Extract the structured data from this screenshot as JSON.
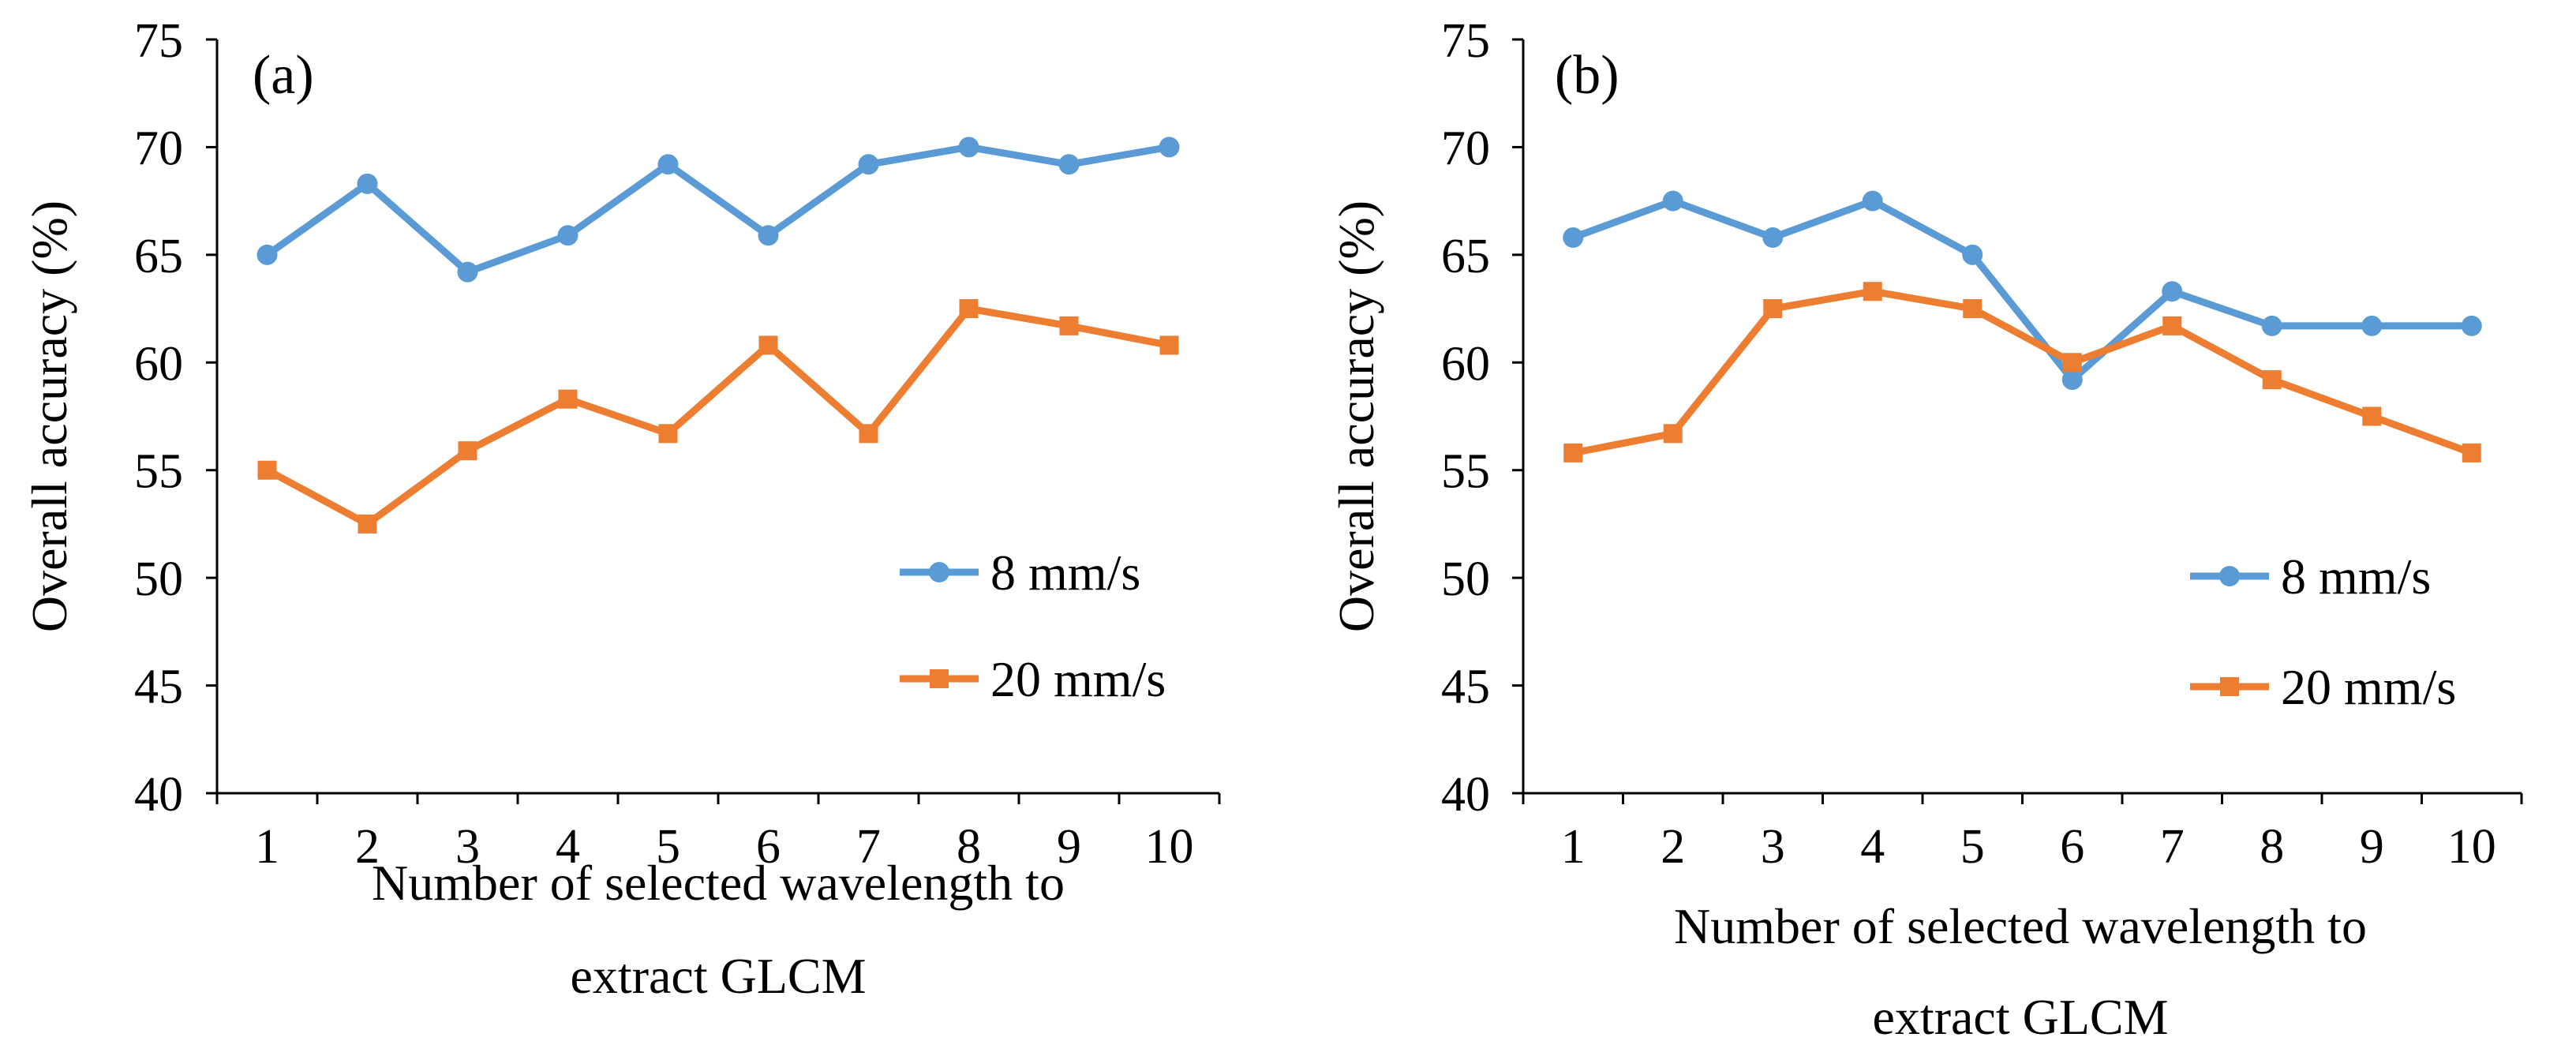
{
  "chart_data": [
    {
      "type": "line",
      "panel_label": "(a)",
      "title": "",
      "xlabel": [
        "Number of  selected wavelength to",
        "extract GLCM"
      ],
      "ylabel": "Overall accuracy (%)",
      "ylim": [
        40,
        75
      ],
      "yticks": [
        40,
        45,
        50,
        55,
        60,
        65,
        70,
        75
      ],
      "categories": [
        "1",
        "2",
        "3",
        "4",
        "5",
        "6",
        "7",
        "8",
        "9",
        "10"
      ],
      "grid": false,
      "legend_position": "bottom-right",
      "series": [
        {
          "name": "8 mm/s",
          "marker": "circle",
          "color": "#5B9BD5",
          "values": [
            65.0,
            68.3,
            64.2,
            65.9,
            69.2,
            65.9,
            69.2,
            70.0,
            69.2,
            70.0
          ]
        },
        {
          "name": "20 mm/s",
          "marker": "square",
          "color": "#ED7D31",
          "values": [
            55.0,
            52.5,
            55.9,
            58.3,
            56.7,
            60.8,
            56.7,
            62.5,
            61.7,
            60.8
          ]
        }
      ]
    },
    {
      "type": "line",
      "panel_label": "(b)",
      "title": "",
      "xlabel": [
        "Number of  selected wavelength to",
        "extract GLCM"
      ],
      "ylabel": "Overall accuracy (%)",
      "ylim": [
        40,
        75
      ],
      "yticks": [
        40,
        45,
        50,
        55,
        60,
        65,
        70,
        75
      ],
      "categories": [
        "1",
        "2",
        "3",
        "4",
        "5",
        "6",
        "7",
        "8",
        "9",
        "10"
      ],
      "grid": false,
      "legend_position": "bottom-right",
      "series": [
        {
          "name": "8 mm/s",
          "marker": "circle",
          "color": "#5B9BD5",
          "values": [
            65.8,
            67.5,
            65.8,
            67.5,
            65.0,
            59.2,
            63.3,
            61.7,
            61.7,
            61.7
          ]
        },
        {
          "name": "20 mm/s",
          "marker": "square",
          "color": "#ED7D31",
          "values": [
            55.8,
            56.7,
            62.5,
            63.3,
            62.5,
            60.0,
            61.7,
            59.2,
            57.5,
            55.8
          ]
        }
      ]
    }
  ]
}
